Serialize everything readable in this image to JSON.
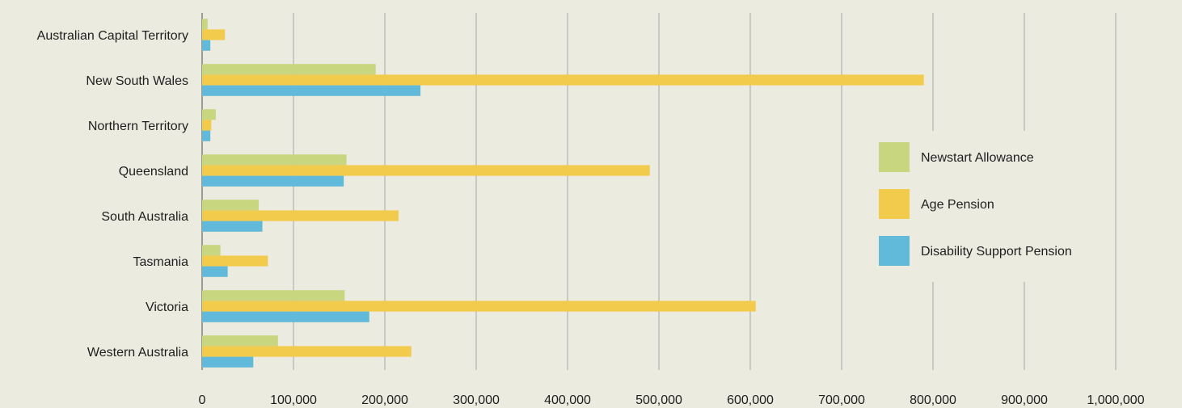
{
  "chart_data": {
    "type": "bar",
    "orientation": "horizontal",
    "categories": [
      "Australian Capital Territory",
      "New South Wales",
      "Northern Territory",
      "Queensland",
      "South Australia",
      "Tasmania",
      "Victoria",
      "Western Australia"
    ],
    "series": [
      {
        "name": "Newstart Allowance",
        "color": "#c8d680",
        "values": [
          6000,
          190000,
          15000,
          158000,
          62000,
          20000,
          156000,
          83000
        ]
      },
      {
        "name": "Age Pension",
        "color": "#f2ca4c",
        "values": [
          25000,
          790000,
          10000,
          490000,
          215000,
          72000,
          606000,
          229000
        ]
      },
      {
        "name": "Disability Support Pension",
        "color": "#62bada",
        "values": [
          9000,
          239000,
          9000,
          155000,
          66000,
          28000,
          183000,
          56000
        ]
      }
    ],
    "xticks": [
      "0",
      "100,000",
      "200,000",
      "300,000",
      "400,000",
      "500,000",
      "600,000",
      "700,000",
      "800,000",
      "900,000",
      "1,000,000"
    ],
    "xlim": [
      0,
      1000000
    ],
    "grid": true,
    "legend": "right",
    "title": "",
    "xlabel": "",
    "ylabel": ""
  },
  "colors": {
    "background": "#ecebdf",
    "gridline": "#c9c9c4",
    "axis": "#9a9a94",
    "text": "#1e1e1e"
  }
}
